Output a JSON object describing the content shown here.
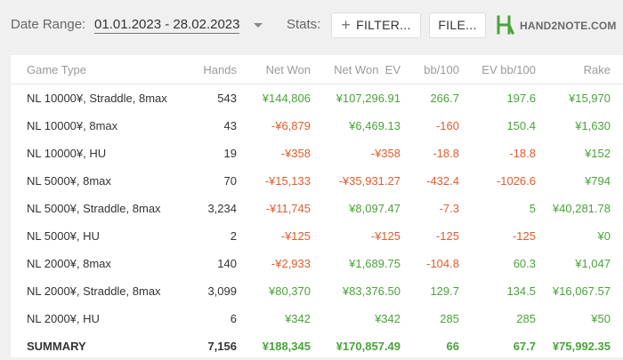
{
  "toolbar": {
    "date_range_label": "Date Range:",
    "date_range_value": "01.01.2023 - 28.02.2023",
    "stats_label": "Stats:",
    "filter_button": "FILTER...",
    "file_button": "FILE...",
    "logo_text": "HAND2NOTE.COM"
  },
  "table": {
    "headers": [
      "Game Type",
      "Hands",
      "Net Won",
      "Net Won  EV",
      "bb/100",
      "EV bb/100",
      "Rake"
    ],
    "rows": [
      {
        "game": "NL 10000¥, Straddle, 8max",
        "hands": "543",
        "net_won": "¥144,806",
        "net_won_ev": "¥107,296.91",
        "bb100": "266.7",
        "ev_bb100": "197.6",
        "rake": "¥15,970"
      },
      {
        "game": "NL 10000¥, 8max",
        "hands": "43",
        "net_won": "-¥6,879",
        "net_won_ev": "¥6,469.13",
        "bb100": "-160",
        "ev_bb100": "150.4",
        "rake": "¥1,630"
      },
      {
        "game": "NL 10000¥, HU",
        "hands": "19",
        "net_won": "-¥358",
        "net_won_ev": "-¥358",
        "bb100": "-18.8",
        "ev_bb100": "-18.8",
        "rake": "¥152"
      },
      {
        "game": "NL 5000¥, 8max",
        "hands": "70",
        "net_won": "-¥15,133",
        "net_won_ev": "-¥35,931.27",
        "bb100": "-432.4",
        "ev_bb100": "-1026.6",
        "rake": "¥794"
      },
      {
        "game": "NL 5000¥, Straddle, 8max",
        "hands": "3,234",
        "net_won": "-¥11,745",
        "net_won_ev": "¥8,097.47",
        "bb100": "-7.3",
        "ev_bb100": "5",
        "rake": "¥40,281.78"
      },
      {
        "game": "NL 5000¥, HU",
        "hands": "2",
        "net_won": "-¥125",
        "net_won_ev": "-¥125",
        "bb100": "-125",
        "ev_bb100": "-125",
        "rake": "¥0"
      },
      {
        "game": "NL 2000¥, 8max",
        "hands": "140",
        "net_won": "-¥2,933",
        "net_won_ev": "¥1,689.75",
        "bb100": "-104.8",
        "ev_bb100": "60.3",
        "rake": "¥1,047"
      },
      {
        "game": "NL 2000¥, Straddle, 8max",
        "hands": "3,099",
        "net_won": "¥80,370",
        "net_won_ev": "¥83,376.50",
        "bb100": "129.7",
        "ev_bb100": "134.5",
        "rake": "¥16,067.57"
      },
      {
        "game": "NL 2000¥, HU",
        "hands": "6",
        "net_won": "¥342",
        "net_won_ev": "¥342",
        "bb100": "285",
        "ev_bb100": "285",
        "rake": "¥50"
      }
    ],
    "summary": {
      "game": "SUMMARY",
      "hands": "7,156",
      "net_won": "¥188,345",
      "net_won_ev": "¥170,857.49",
      "bb100": "66",
      "ev_bb100": "67.7",
      "rake": "¥75,992.35"
    }
  },
  "colors": {
    "positive": "#4aa33a",
    "negative": "#e25c2c",
    "logo_green": "#4aa33a"
  }
}
